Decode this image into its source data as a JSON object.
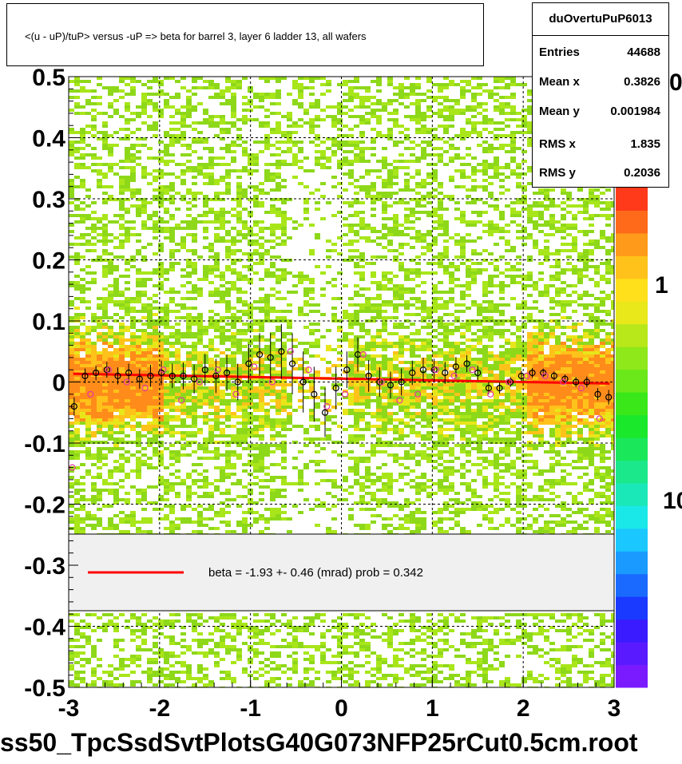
{
  "title": "<(u - uP)/tuP> versus  -uP => beta for barrel 3, layer 6 ladder 13, all wafers",
  "stats": {
    "name": "duOvertuPuP6013",
    "rows": [
      {
        "label": "Entries",
        "value": "44688"
      },
      {
        "label": "Mean x",
        "value": "0.3826"
      },
      {
        "label": "Mean y",
        "value": "0.001984"
      },
      {
        "label": "RMS x",
        "value": "1.835"
      },
      {
        "label": "RMS y",
        "value": "0.2036"
      }
    ]
  },
  "legend": {
    "text": "beta =   -1.93 +-  0.46 (mrad) prob = 0.342",
    "line_color": "#ff0000"
  },
  "footer": "ss50_TpcSsdSvtPlotsG40G073NFP25rCut0.5cm.root",
  "palette_labels": [
    "0",
    "1",
    "10"
  ],
  "chart_data": {
    "type": "scatter",
    "title": "<(u - uP)/tuP> versus  -uP => beta for barrel 3, layer 6 ladder 13, all wafers",
    "xlim": [
      -3,
      3
    ],
    "ylim": [
      -0.5,
      0.5
    ],
    "x_ticks": [
      "-3",
      "-2",
      "-1",
      "0",
      "1",
      "2",
      "3"
    ],
    "y_ticks": [
      "-0.5",
      "-0.4",
      "-0.3",
      "-0.2",
      "-0.1",
      "0",
      "0.1",
      "0.2",
      "0.3",
      "0.4",
      "0.5"
    ],
    "grid": true,
    "fit": {
      "x": [
        -2.95,
        2.95
      ],
      "y": [
        0.0135,
        -0.0025
      ],
      "color": "#ff0000"
    },
    "profile_black": {
      "x": [
        -2.94,
        -2.82,
        -2.7,
        -2.58,
        -2.46,
        -2.34,
        -2.22,
        -2.1,
        -1.98,
        -1.86,
        -1.74,
        -1.62,
        -1.5,
        -1.38,
        -1.26,
        -1.14,
        -1.02,
        -0.9,
        -0.78,
        -0.66,
        -0.54,
        -0.42,
        -0.3,
        -0.18,
        -0.06,
        0.06,
        0.18,
        0.3,
        0.42,
        0.54,
        0.66,
        0.78,
        0.9,
        1.02,
        1.14,
        1.26,
        1.38,
        1.5,
        1.62,
        1.74,
        1.86,
        1.98,
        2.1,
        2.22,
        2.34,
        2.46,
        2.58,
        2.7,
        2.82,
        2.94
      ],
      "y": [
        -0.04,
        0.01,
        0.015,
        0.02,
        0.01,
        0.015,
        0.005,
        0.01,
        0.015,
        0.01,
        0.01,
        0.005,
        0.02,
        0.01,
        0.015,
        0.0,
        0.03,
        0.045,
        0.04,
        0.05,
        0.03,
        0.0,
        -0.02,
        -0.05,
        -0.01,
        0.02,
        0.045,
        0.01,
        0.0,
        -0.005,
        0.0,
        0.015,
        0.02,
        0.02,
        0.015,
        0.025,
        0.03,
        0.015,
        -0.01,
        -0.01,
        0.0,
        0.01,
        0.015,
        0.015,
        0.01,
        0.005,
        0.0,
        0.0,
        -0.02,
        -0.025
      ],
      "err": [
        0.015,
        0.012,
        0.012,
        0.013,
        0.014,
        0.015,
        0.016,
        0.018,
        0.02,
        0.02,
        0.022,
        0.024,
        0.026,
        0.028,
        0.03,
        0.03,
        0.032,
        0.035,
        0.04,
        0.045,
        0.05,
        0.05,
        0.045,
        0.04,
        0.035,
        0.03,
        0.028,
        0.026,
        0.024,
        0.022,
        0.022,
        0.02,
        0.02,
        0.018,
        0.018,
        0.016,
        0.014,
        0.012,
        0.01,
        0.009,
        0.008,
        0.008,
        0.008,
        0.007,
        0.007,
        0.007,
        0.008,
        0.009,
        0.01,
        0.012
      ]
    },
    "profile_pink": {
      "x": [
        -2.96,
        -2.76,
        -2.56,
        -2.36,
        -2.16,
        -1.96,
        -1.76,
        -1.56,
        -1.36,
        -1.16,
        -0.96,
        -0.76,
        -0.56,
        -0.36,
        -0.16,
        0.04,
        0.24,
        0.44,
        0.64,
        0.84,
        1.04,
        1.24,
        1.44,
        1.64,
        1.84,
        2.04,
        2.24,
        2.44,
        2.64,
        2.84
      ],
      "y": [
        -0.14,
        -0.02,
        0.02,
        0.0,
        -0.01,
        0.02,
        -0.03,
        0.0,
        0.02,
        -0.02,
        0.025,
        0.0,
        0.05,
        0.02,
        -0.04,
        -0.02,
        0.045,
        0.0,
        -0.03,
        -0.02,
        0.02,
        0.01,
        0.02,
        -0.02,
        0.0,
        0.01,
        0.01,
        0.0,
        -0.01,
        -0.06
      ]
    },
    "colorbar": {
      "scale": "log",
      "labels": [
        "1",
        "10"
      ]
    }
  }
}
